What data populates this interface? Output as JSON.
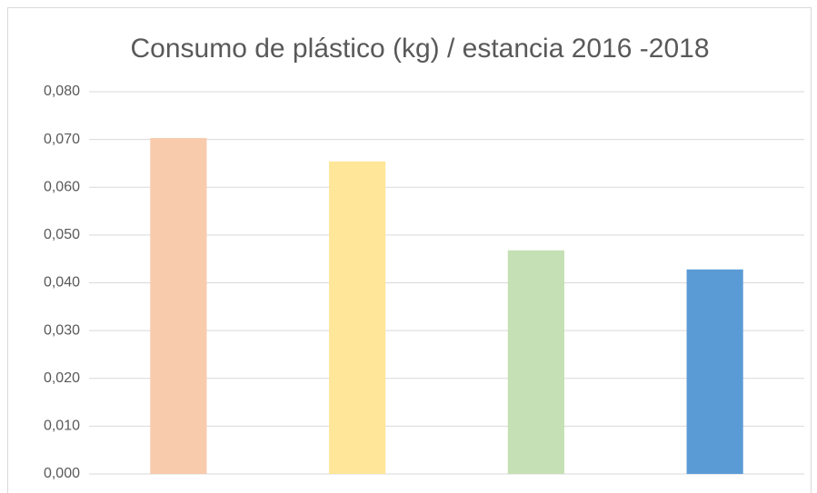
{
  "chart_data": {
    "type": "bar",
    "title": "Consumo de plástico (kg) / estancia  2016 -2018",
    "categories": [
      null,
      null,
      null,
      null
    ],
    "values": [
      0.0703,
      0.0654,
      0.0468,
      0.0428
    ],
    "colors": [
      "#f8cbad",
      "#ffe699",
      "#c5e0b4",
      "#5b9bd5"
    ],
    "ylim": [
      0,
      0.08
    ],
    "yticks": [
      {
        "value": 0,
        "label": "0,000"
      },
      {
        "value": 0.01,
        "label": "0,010"
      },
      {
        "value": 0.02,
        "label": "0,020"
      },
      {
        "value": 0.03,
        "label": "0,030"
      },
      {
        "value": 0.04,
        "label": "0,040"
      },
      {
        "value": 0.05,
        "label": "0,050"
      },
      {
        "value": 0.06,
        "label": "0,060"
      },
      {
        "value": 0.07,
        "label": "0,070"
      },
      {
        "value": 0.08,
        "label": "0,080"
      }
    ],
    "grid": true
  }
}
